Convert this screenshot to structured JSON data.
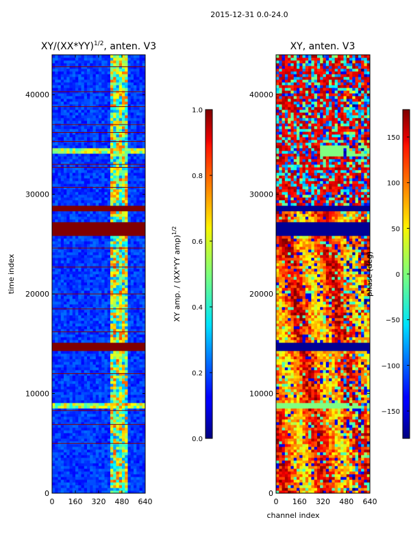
{
  "suptitle": "2015-12-31 0.0-24.0",
  "chart_data": [
    {
      "type": "heatmap",
      "title": "XY/(XX*YY)",
      "title_exponent": "1/2",
      "title_suffix": ", anten. V3",
      "xlabel": "",
      "ylabel": "time index",
      "xlim": [
        0,
        640
      ],
      "ylim": [
        0,
        44000
      ],
      "xticks": [
        0,
        160,
        320,
        480,
        640
      ],
      "yticks": [
        0,
        10000,
        20000,
        30000,
        40000
      ],
      "background_level": 0.18,
      "bright_channel_band": [
        400,
        520
      ],
      "saturated_bands": [
        {
          "y0": 14200,
          "y1": 15000
        },
        {
          "y0": 25800,
          "y1": 27100
        },
        {
          "y0": 28200,
          "y1": 28800
        }
      ],
      "flag_lines": [
        5000,
        6900,
        8300,
        12000,
        16200,
        18500,
        20000,
        22700,
        24600,
        30700,
        32700,
        33000,
        35300,
        36200,
        37000,
        38800,
        40300,
        42800
      ],
      "colorbar": {
        "label": "XY amp. / (XX*YY amp)",
        "label_exponent": "1/2",
        "range": [
          0.0,
          1.0
        ],
        "ticks": [
          0.0,
          0.2,
          0.4,
          0.6,
          0.8,
          1.0
        ],
        "tick_labels": [
          "0.0",
          "0.2",
          "0.4",
          "0.6",
          "0.8",
          "1.0"
        ]
      }
    },
    {
      "type": "heatmap",
      "title": "XY, anten. V3",
      "xlabel": "channel index",
      "ylabel": "",
      "xlim": [
        0,
        640
      ],
      "ylim": [
        0,
        44000
      ],
      "xticks": [
        0,
        160,
        320,
        480,
        640
      ],
      "yticks": [
        0,
        10000,
        20000,
        30000,
        40000
      ],
      "blocked_bands": [
        {
          "y0": 14200,
          "y1": 15000
        },
        {
          "y0": 25800,
          "y1": 27100
        },
        {
          "y0": 28200,
          "y1": 28800
        }
      ],
      "colorbar": {
        "label": "phase (deg)",
        "range": [
          -180,
          180
        ],
        "ticks": [
          -150,
          -100,
          -50,
          0,
          50,
          100,
          150
        ],
        "tick_labels": [
          "−150",
          "−100",
          "−50",
          "0",
          "50",
          "100",
          "150"
        ]
      }
    }
  ]
}
